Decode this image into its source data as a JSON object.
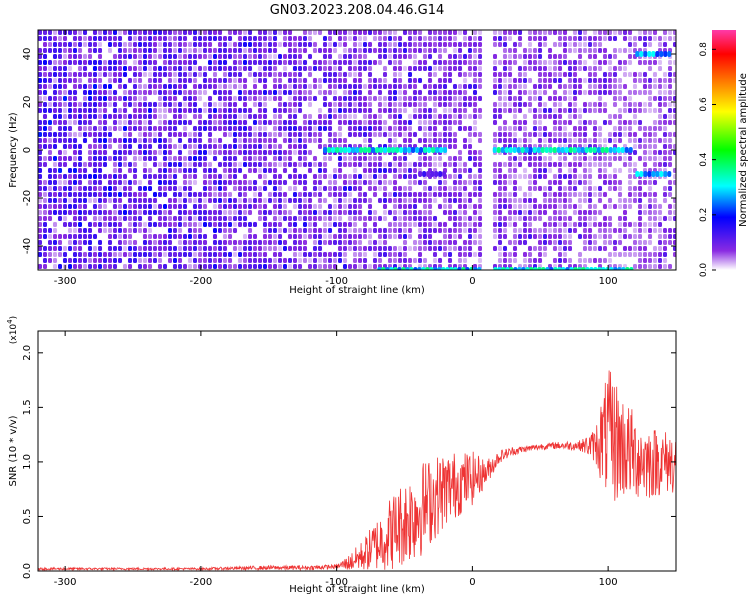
{
  "title": "GN03.2023.208.04.46.G14",
  "chart_data": [
    {
      "type": "heatmap",
      "xlabel": "Height of straight line (km)",
      "ylabel": "Frequency (Hz)",
      "xlim": [
        -320,
        150
      ],
      "ylim": [
        -50,
        50
      ],
      "xticks": [
        -300,
        -200,
        -100,
        0,
        100
      ],
      "xtick_labels": [
        "-300",
        "-200",
        "-100",
        "0",
        "100"
      ],
      "yticks": [
        -40,
        -20,
        0,
        20,
        40
      ],
      "ytick_labels": [
        "-40",
        "-20",
        "0",
        "20",
        "40"
      ],
      "colorbar": {
        "label": "Normalized spectral amplitude",
        "range": [
          0,
          0.87
        ],
        "ticks": [
          0.0,
          0.2,
          0.4,
          0.6,
          0.8
        ],
        "tick_labels": [
          "0.0",
          "0.2",
          "0.4",
          "0.6",
          "0.8"
        ],
        "colors": [
          "#ffffff",
          "#8a2be2",
          "#0000ff",
          "#00ffff",
          "#00ff00",
          "#ffff00",
          "#ff8000",
          "#ff0000",
          "#ff3aa8"
        ]
      },
      "features": [
        {
          "x": [
            -110,
            -20
          ],
          "freq": 0,
          "amplitude": 0.3
        },
        {
          "x": [
            15,
            118
          ],
          "freq": 0,
          "amplitude": 0.3
        },
        {
          "x": [
            120,
            145
          ],
          "freq": 40,
          "amplitude": 0.25
        },
        {
          "x": [
            120,
            145
          ],
          "freq": -10,
          "amplitude": 0.25
        },
        {
          "x": [
            -40,
            -20
          ],
          "freq": -10,
          "amplitude": 0.12
        },
        {
          "x": [
            -70,
            118
          ],
          "freq": -50,
          "amplitude": 0.3
        }
      ],
      "gap_x": 10,
      "grid": false
    },
    {
      "type": "line",
      "xlabel": "Height of straight line (km)",
      "ylabel": "SNR (10 * v/v)",
      "y_multiplier": "(x10",
      "y_multiplier_exp": "4",
      "y_multiplier_close": ")",
      "xlim": [
        -320,
        150
      ],
      "ylim": [
        0,
        2.2
      ],
      "xticks": [
        -300,
        -200,
        -100,
        0,
        100
      ],
      "xtick_labels": [
        "-300",
        "-200",
        "-100",
        "0",
        "100"
      ],
      "yticks": [
        0.0,
        0.5,
        1.0,
        1.5,
        2.0
      ],
      "ytick_labels": [
        "0.0",
        "0.5",
        "1.0",
        "1.5",
        "2.0"
      ],
      "series": [
        {
          "color": "#ee3333",
          "x": [
            -320,
            -250,
            -200,
            -150,
            -120,
            -100,
            -90,
            -80,
            -70,
            -60,
            -50,
            -40,
            -30,
            -20,
            -10,
            0,
            10,
            20,
            30,
            40,
            50,
            60,
            70,
            80,
            90,
            95,
            100,
            105,
            110,
            115,
            120,
            130,
            140,
            150
          ],
          "y": [
            0.02,
            0.02,
            0.02,
            0.03,
            0.03,
            0.04,
            0.08,
            0.15,
            0.25,
            0.35,
            0.45,
            0.55,
            0.65,
            0.75,
            0.8,
            0.85,
            0.9,
            1.05,
            1.1,
            1.12,
            1.14,
            1.15,
            1.15,
            1.15,
            1.15,
            1.2,
            1.25,
            1.2,
            1.15,
            1.1,
            1.05,
            1.0,
            1.0,
            1.0
          ],
          "spread": [
            0.01,
            0.01,
            0.01,
            0.02,
            0.02,
            0.02,
            0.08,
            0.15,
            0.25,
            0.35,
            0.4,
            0.45,
            0.4,
            0.35,
            0.3,
            0.25,
            0.12,
            0.06,
            0.04,
            0.03,
            0.03,
            0.03,
            0.04,
            0.05,
            0.15,
            0.4,
            0.6,
            0.6,
            0.5,
            0.45,
            0.4,
            0.35,
            0.3,
            0.3
          ]
        }
      ],
      "grid": false
    }
  ]
}
